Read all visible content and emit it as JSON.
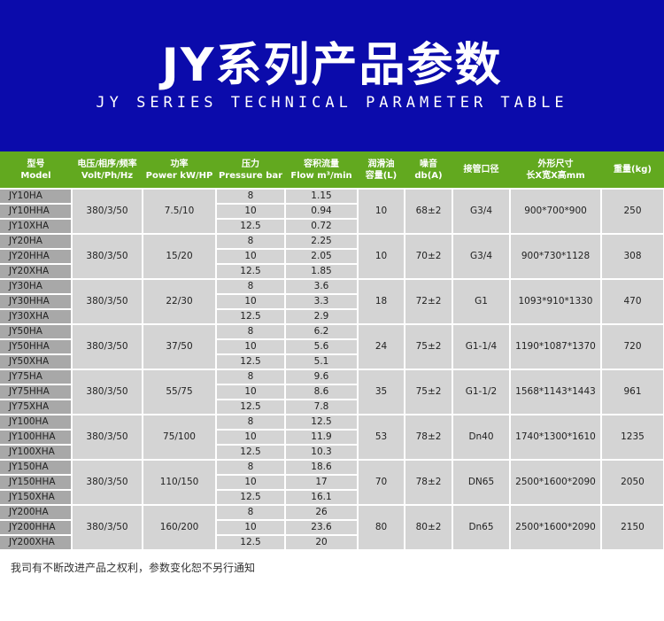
{
  "banner": {
    "title": "JY系列产品参数",
    "subtitle": "JY SERIES TECHNICAL PARAMETER TABLE"
  },
  "colors": {
    "banner": "#0b0bab",
    "header": "#62a91f",
    "cell": "#d4d4d4",
    "model_cell": "#a8a8a8"
  },
  "table": {
    "headers": [
      [
        "型号",
        "Model"
      ],
      [
        "电压/相序/频率",
        "Volt/Ph/Hz"
      ],
      [
        "功率",
        "Power kW/HP"
      ],
      [
        "压力",
        "Pressure bar"
      ],
      [
        "容积流量",
        "Flow m³/min"
      ],
      [
        "润滑油",
        "容量(L)"
      ],
      [
        "噪音",
        "db(A)"
      ],
      [
        "接管口径",
        ""
      ],
      [
        "外形尺寸",
        "长X宽X高mm"
      ],
      [
        "重量(kg)",
        ""
      ]
    ],
    "groups": [
      {
        "models": [
          "JY10HA",
          "JY10HHA",
          "JY10XHA"
        ],
        "volt": "380/3/50",
        "power": "7.5/10",
        "pressure": [
          "8",
          "10",
          "12.5"
        ],
        "flow": [
          "1.15",
          "0.94",
          "0.72"
        ],
        "oil": "10",
        "noise": "68±2",
        "pipe": "G3/4",
        "dims": "900*700*900",
        "weight": "250"
      },
      {
        "models": [
          "JY20HA",
          "JY20HHA",
          "JY20XHA"
        ],
        "volt": "380/3/50",
        "power": "15/20",
        "pressure": [
          "8",
          "10",
          "12.5"
        ],
        "flow": [
          "2.25",
          "2.05",
          "1.85"
        ],
        "oil": "10",
        "noise": "70±2",
        "pipe": "G3/4",
        "dims": "900*730*1128",
        "weight": "308"
      },
      {
        "models": [
          "JY30HA",
          "JY30HHA",
          "JY30XHA"
        ],
        "volt": "380/3/50",
        "power": "22/30",
        "pressure": [
          "8",
          "10",
          "12.5"
        ],
        "flow": [
          "3.6",
          "3.3",
          "2.9"
        ],
        "oil": "18",
        "noise": "72±2",
        "pipe": "G1",
        "dims": "1093*910*1330",
        "weight": "470"
      },
      {
        "models": [
          "JY50HA",
          "JY50HHA",
          "JY50XHA"
        ],
        "volt": "380/3/50",
        "power": "37/50",
        "pressure": [
          "8",
          "10",
          "12.5"
        ],
        "flow": [
          "6.2",
          "5.6",
          "5.1"
        ],
        "oil": "24",
        "noise": "75±2",
        "pipe": "G1-1/4",
        "dims": "1190*1087*1370",
        "weight": "720"
      },
      {
        "models": [
          "JY75HA",
          "JY75HHA",
          "JY75XHA"
        ],
        "volt": "380/3/50",
        "power": "55/75",
        "pressure": [
          "8",
          "10",
          "12.5"
        ],
        "flow": [
          "9.6",
          "8.6",
          "7.8"
        ],
        "oil": "35",
        "noise": "75±2",
        "pipe": "G1-1/2",
        "dims": "1568*1143*1443",
        "weight": "961"
      },
      {
        "models": [
          "JY100HA",
          "JY100HHA",
          "JY100XHA"
        ],
        "volt": "380/3/50",
        "power": "75/100",
        "pressure": [
          "8",
          "10",
          "12.5"
        ],
        "flow": [
          "12.5",
          "11.9",
          "10.3"
        ],
        "oil": "53",
        "noise": "78±2",
        "pipe": "Dn40",
        "dims": "1740*1300*1610",
        "weight": "1235"
      },
      {
        "models": [
          "JY150HA",
          "JY150HHA",
          "JY150XHA"
        ],
        "volt": "380/3/50",
        "power": "110/150",
        "pressure": [
          "8",
          "10",
          "12.5"
        ],
        "flow": [
          "18.6",
          "17",
          "16.1"
        ],
        "oil": "70",
        "noise": "78±2",
        "pipe": "DN65",
        "dims": "2500*1600*2090",
        "weight": "2050"
      },
      {
        "models": [
          "JY200HA",
          "JY200HHA",
          "JY200XHA"
        ],
        "volt": "380/3/50",
        "power": "160/200",
        "pressure": [
          "8",
          "10",
          "12.5"
        ],
        "flow": [
          "26",
          "23.6",
          "20"
        ],
        "oil": "80",
        "noise": "80±2",
        "pipe": "Dn65",
        "dims": "2500*1600*2090",
        "weight": "2150"
      }
    ]
  },
  "footer": "我司有不断改进产品之权利，参数变化恕不另行通知"
}
